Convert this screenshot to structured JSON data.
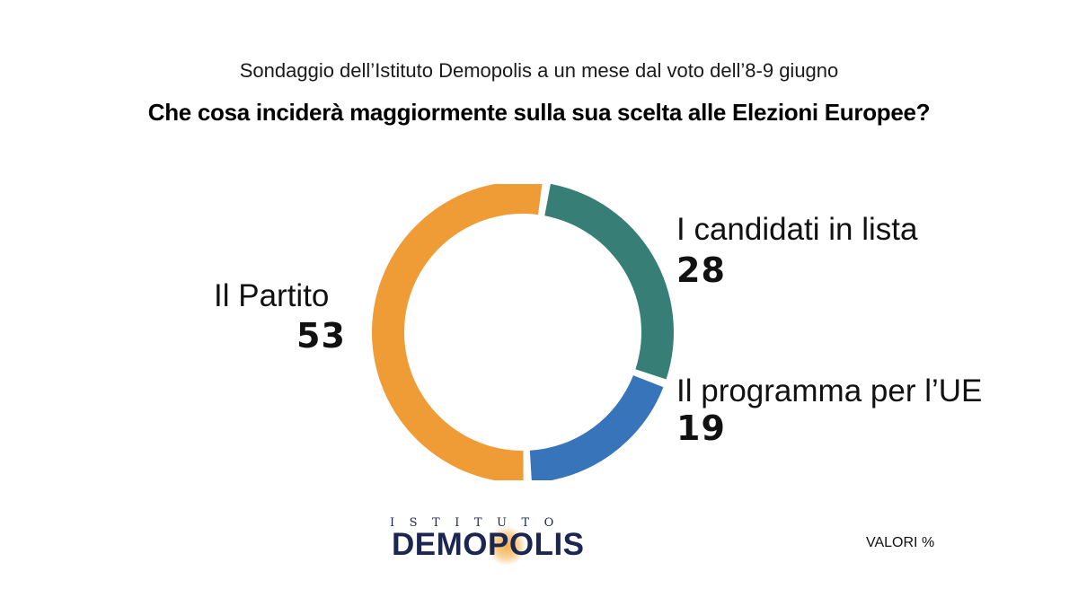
{
  "header": {
    "subtitle": "Sondaggio dell’Istituto Demopolis a un mese dal voto dell’8-9 giugno",
    "title": "Che cosa inciderà maggiormente sulla sua scelta alle Elezioni Europee?"
  },
  "chart_data": {
    "type": "pie",
    "donut": true,
    "title": "Che cosa inciderà maggiormente sulla sua scelta alle Elezioni Europee?",
    "categories": [
      "I candidati in lista",
      "Il programma per l’UE",
      "Il Partito"
    ],
    "values": [
      28,
      19,
      53
    ],
    "colors": [
      "#367e76",
      "#3874ba",
      "#ef9c37"
    ],
    "value_labels": [
      "28",
      "19",
      "53"
    ],
    "units": "%"
  },
  "footer": {
    "logo_top": "ISTITUTO",
    "logo_main": "DEMOPOLIS",
    "units_note": "VALORI %"
  }
}
